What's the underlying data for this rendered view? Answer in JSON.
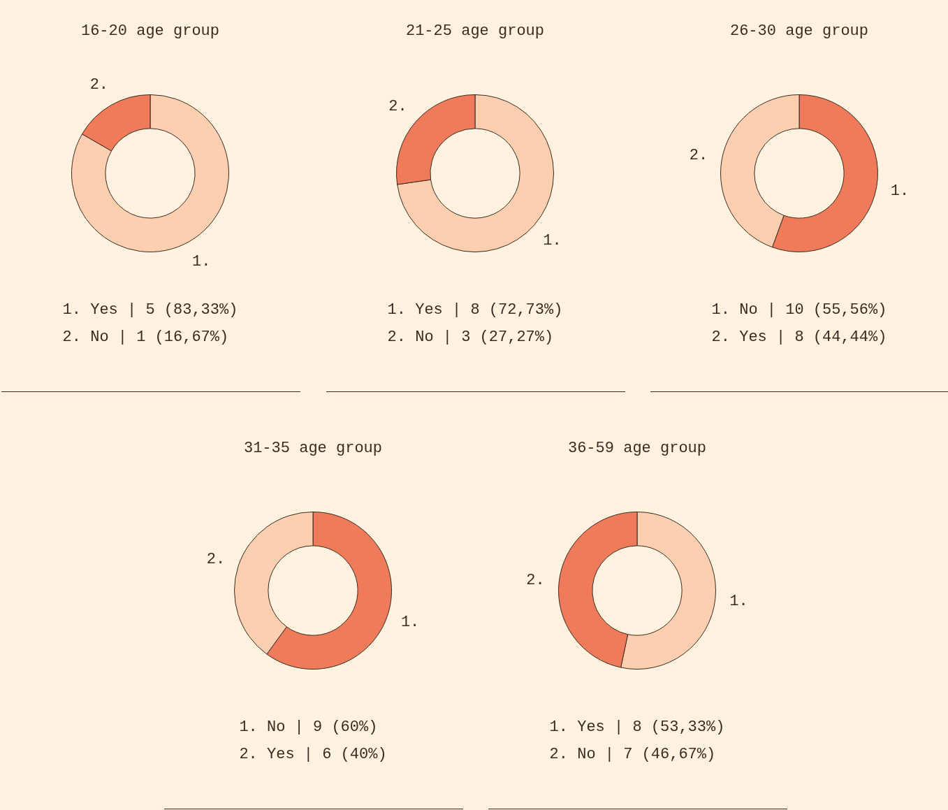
{
  "chart_data": [
    {
      "type": "donut",
      "title": "16-20 age group",
      "categories": [
        "1.",
        "2."
      ],
      "values": [
        83.33,
        16.67
      ],
      "colors": [
        "#fccfb0",
        "#ef7b5a"
      ],
      "annotations": [
        "1. Yes | 5 (83,33%)",
        "2. No | 1 (16,67%)"
      ]
    },
    {
      "type": "donut",
      "title": "21-25 age group",
      "categories": [
        "1.",
        "2."
      ],
      "values": [
        72.73,
        27.27
      ],
      "colors": [
        "#fccfb0",
        "#ef7b5a"
      ],
      "annotations": [
        "1. Yes | 8 (72,73%)",
        "2. No | 3 (27,27%)"
      ]
    },
    {
      "type": "donut",
      "title": "26-30 age group",
      "categories": [
        "1.",
        "2."
      ],
      "values": [
        55.56,
        44.44
      ],
      "colors": [
        "#ef7b5a",
        "#fccfb0"
      ],
      "annotations": [
        "1. No | 10 (55,56%)",
        "2. Yes | 8 (44,44%)"
      ]
    },
    {
      "type": "donut",
      "title": "31-35 age group",
      "categories": [
        "1.",
        "2."
      ],
      "values": [
        60,
        40
      ],
      "colors": [
        "#ef7b5a",
        "#fccfb0"
      ],
      "annotations": [
        "1. No | 9 (60%)",
        "2. Yes | 6 (40%)"
      ]
    },
    {
      "type": "donut",
      "title": "36-59 age group",
      "categories": [
        "1.",
        "2."
      ],
      "values": [
        53.33,
        46.67
      ],
      "colors": [
        "#fccfb0",
        "#ef7b5a"
      ],
      "annotations": [
        "1. Yes | 8 (53,33%)",
        "2. No | 7 (46,67%)"
      ]
    }
  ]
}
